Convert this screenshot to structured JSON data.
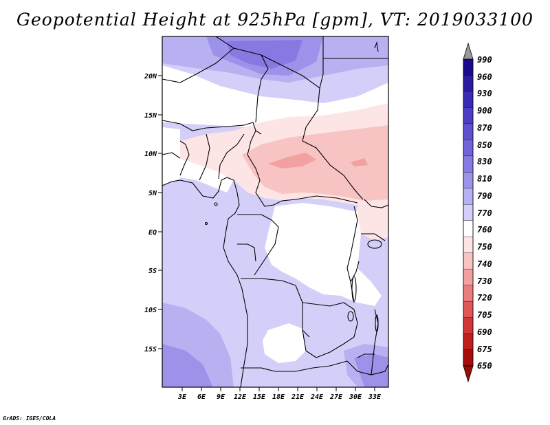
{
  "title": "Geopotential Height at 925hPa [gpm], VT: 2019033100",
  "footer": "GrADS: IGES/COLA",
  "map": {
    "lat_labels": [
      "20N",
      "15N",
      "10N",
      "5N",
      "EQ",
      "5S",
      "10S",
      "15S"
    ],
    "lon_labels": [
      "3E",
      "6E",
      "9E",
      "12E",
      "15E",
      "18E",
      "21E",
      "24E",
      "27E",
      "30E",
      "33E"
    ]
  },
  "colorbar": {
    "levels": [
      "990",
      "960",
      "930",
      "900",
      "870",
      "850",
      "830",
      "810",
      "790",
      "770",
      "760",
      "750",
      "740",
      "730",
      "720",
      "705",
      "690",
      "675",
      "650"
    ],
    "colors": [
      "#1a0a8c",
      "#2a1ba0",
      "#3a2bb3",
      "#4c3dc4",
      "#5e50d0",
      "#7164da",
      "#8679e2",
      "#9d92ea",
      "#b7b0f1",
      "#d3cff8",
      "#ffffff",
      "#fde5e5",
      "#f8c3c3",
      "#f2a0a0",
      "#ea7d7d",
      "#df5757",
      "#d33636",
      "#c21d1d",
      "#a80c0c"
    ],
    "top_arrow_color": "#999999",
    "bottom_arrow_color": "#9a0d0d"
  }
}
